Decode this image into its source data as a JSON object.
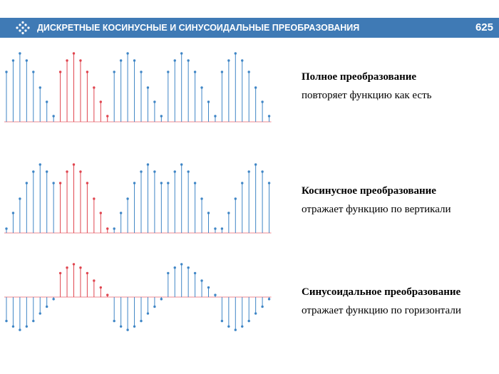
{
  "header": {
    "title": "ДИСКРЕТНЫЕ КОСИНУСНЫЕ И СИНУСОИДАЛЬНЫЕ ПРЕОБРАЗОВАНИЯ",
    "page_number": "625"
  },
  "colors": {
    "header_bg": "#3f7ab5",
    "stem_blue": "#3f86c6",
    "stem_red": "#e0454f",
    "baseline": "#f0a0a8"
  },
  "icons": {
    "logo": "diamond-dots-arrow-icon"
  },
  "sections": [
    {
      "title": "Полное преобразование",
      "text": "повторяет функцию как есть"
    },
    {
      "title": "Косинусное преобразование",
      "text": "отражает функцию по вертикали"
    },
    {
      "title": "Синусоидальное преобразование",
      "text": "отражает функцию по горизонтали"
    }
  ],
  "chart_data": [
    {
      "type": "stem",
      "samples": [
        0.7,
        0.86,
        0.96,
        0.86,
        0.7,
        0.48,
        0.28,
        0.08,
        0.7,
        0.86,
        0.96,
        0.86,
        0.7,
        0.48,
        0.28,
        0.08,
        0.7,
        0.86,
        0.96,
        0.86,
        0.7,
        0.48,
        0.28,
        0.08,
        0.7,
        0.86,
        0.96,
        0.86,
        0.7,
        0.48,
        0.28,
        0.08,
        0.7,
        0.86,
        0.96,
        0.86,
        0.7,
        0.48,
        0.28,
        0.08
      ],
      "highlight_range": [
        8,
        15
      ]
    },
    {
      "type": "stem",
      "samples": [
        0.06,
        0.28,
        0.48,
        0.7,
        0.86,
        0.96,
        0.86,
        0.7,
        0.7,
        0.86,
        0.96,
        0.86,
        0.7,
        0.48,
        0.28,
        0.06,
        0.06,
        0.28,
        0.48,
        0.7,
        0.86,
        0.96,
        0.86,
        0.7,
        0.7,
        0.86,
        0.96,
        0.86,
        0.7,
        0.48,
        0.28,
        0.06,
        0.06,
        0.28,
        0.48,
        0.7,
        0.86,
        0.96,
        0.86,
        0.7
      ],
      "highlight_range": [
        8,
        15
      ]
    },
    {
      "type": "stem",
      "samples": [
        -0.7,
        -0.86,
        -0.96,
        -0.86,
        -0.7,
        -0.48,
        -0.28,
        -0.06,
        0.7,
        0.86,
        0.96,
        0.86,
        0.7,
        0.48,
        0.28,
        0.06,
        -0.7,
        -0.86,
        -0.96,
        -0.86,
        -0.7,
        -0.48,
        -0.28,
        -0.06,
        0.7,
        0.86,
        0.96,
        0.86,
        0.7,
        0.48,
        0.28,
        0.06,
        -0.7,
        -0.86,
        -0.96,
        -0.86,
        -0.7,
        -0.48,
        -0.28,
        -0.06
      ],
      "highlight_range": [
        8,
        15
      ]
    }
  ]
}
